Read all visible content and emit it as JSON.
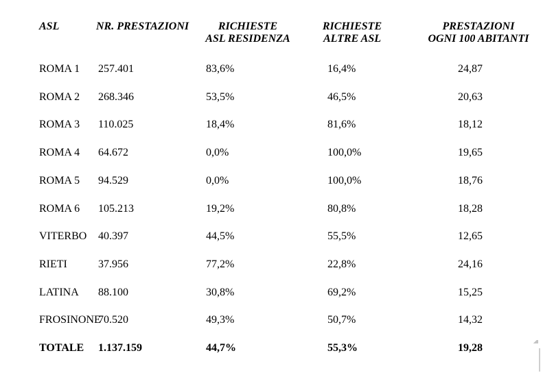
{
  "table": {
    "headers": [
      {
        "line1": "ASL",
        "line2": ""
      },
      {
        "line1": "NR. PRESTAZIONI",
        "line2": ""
      },
      {
        "line1": "RICHIESTE",
        "line2": "ASL RESIDENZA"
      },
      {
        "line1": "RICHIESTE",
        "line2": "ALTRE ASL"
      },
      {
        "line1": "PRESTAZIONI",
        "line2": "OGNI 100 ABITANTI"
      }
    ],
    "rows": [
      {
        "asl": "ROMA 1",
        "nr_prestazioni": "257.401",
        "richieste_asl_residenza": "83,6%",
        "richieste_altre_asl": "16,4%",
        "prestazioni_ogni_100_abitanti": "24,87",
        "bold": false
      },
      {
        "asl": "ROMA 2",
        "nr_prestazioni": "268.346",
        "richieste_asl_residenza": "53,5%",
        "richieste_altre_asl": "46,5%",
        "prestazioni_ogni_100_abitanti": "20,63",
        "bold": false
      },
      {
        "asl": "ROMA 3",
        "nr_prestazioni": "110.025",
        "richieste_asl_residenza": "18,4%",
        "richieste_altre_asl": "81,6%",
        "prestazioni_ogni_100_abitanti": "18,12",
        "bold": false
      },
      {
        "asl": "ROMA 4",
        "nr_prestazioni": "64.672",
        "richieste_asl_residenza": "0,0%",
        "richieste_altre_asl": "100,0%",
        "prestazioni_ogni_100_abitanti": "19,65",
        "bold": false
      },
      {
        "asl": "ROMA 5",
        "nr_prestazioni": "94.529",
        "richieste_asl_residenza": "0,0%",
        "richieste_altre_asl": "100,0%",
        "prestazioni_ogni_100_abitanti": "18,76",
        "bold": false
      },
      {
        "asl": "ROMA 6",
        "nr_prestazioni": "105.213",
        "richieste_asl_residenza": "19,2%",
        "richieste_altre_asl": "80,8%",
        "prestazioni_ogni_100_abitanti": "18,28",
        "bold": false
      },
      {
        "asl": "VITERBO",
        "nr_prestazioni": "40.397",
        "richieste_asl_residenza": "44,5%",
        "richieste_altre_asl": "55,5%",
        "prestazioni_ogni_100_abitanti": "12,65",
        "bold": false
      },
      {
        "asl": "RIETI",
        "nr_prestazioni": "37.956",
        "richieste_asl_residenza": "77,2%",
        "richieste_altre_asl": "22,8%",
        "prestazioni_ogni_100_abitanti": "24,16",
        "bold": false
      },
      {
        "asl": "LATINA",
        "nr_prestazioni": "88.100",
        "richieste_asl_residenza": "30,8%",
        "richieste_altre_asl": "69,2%",
        "prestazioni_ogni_100_abitanti": "15,25",
        "bold": false
      },
      {
        "asl": "FROSINONE",
        "nr_prestazioni": "70.520",
        "richieste_asl_residenza": "49,3%",
        "richieste_altre_asl": "50,7%",
        "prestazioni_ogni_100_abitanti": "14,32",
        "bold": false
      },
      {
        "asl": "TOTALE",
        "nr_prestazioni": "1.137.159",
        "richieste_asl_residenza": "44,7%",
        "richieste_altre_asl": "55,3%",
        "prestazioni_ogni_100_abitanti": "19,28",
        "bold": true
      }
    ]
  },
  "colors": {
    "text": "#000000",
    "background": "#ffffff",
    "scrollbar_fragment": "#cfcfcf"
  }
}
